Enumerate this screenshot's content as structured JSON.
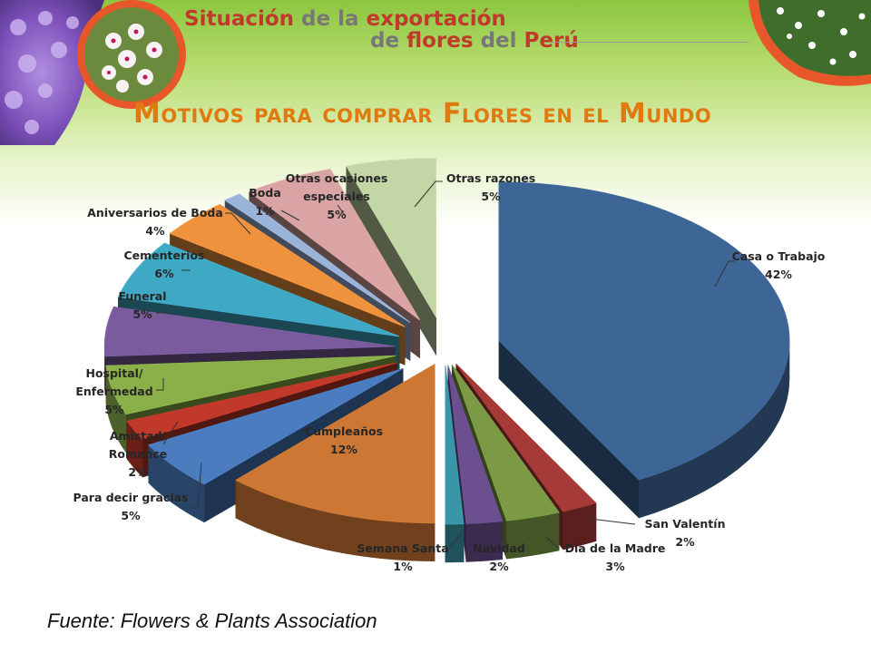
{
  "header": {
    "title_line1_a": "Situación",
    "title_line1_b": " de la ",
    "title_line1_c": "exportación",
    "title_line2_a": "de ",
    "title_line2_b": "flores",
    "title_line2_c": " del ",
    "title_line2_d": "Perú"
  },
  "colors": {
    "header_green": "#8cc63f",
    "photo_ring": "#e8572a",
    "title_orange": "#e07a10"
  },
  "footer": {
    "source": "Fuente: Flowers & Plants Association"
  },
  "chart_data": {
    "type": "pie",
    "title": "Motivos para comprar Flores en el Mundo",
    "unit": "%",
    "slices": [
      {
        "name": "Casa o Trabajo",
        "value": 42,
        "label": "42%",
        "color": "#3d6596"
      },
      {
        "name": "San Valentín",
        "value": 2,
        "label": "2%",
        "color": "#a63a36"
      },
      {
        "name": "Día de la Madre",
        "value": 3,
        "label": "3%",
        "color": "#7c9a45"
      },
      {
        "name": "Navidad",
        "value": 2,
        "label": "2%",
        "color": "#6b4f8f"
      },
      {
        "name": "Semana Santa",
        "value": 1,
        "label": "1%",
        "color": "#3a95a8"
      },
      {
        "name": "Cumpleaños",
        "value": 12,
        "label": "12%",
        "color": "#cc7733"
      },
      {
        "name": "Para decir gracias",
        "value": 5,
        "label": "5%",
        "color": "#4a7cbf"
      },
      {
        "name": "Amistad/ Romance",
        "value": 2,
        "label": "2%",
        "color": "#c0392b"
      },
      {
        "name": "Hospital/ Enfermedad",
        "value": 5,
        "label": "5%",
        "color": "#8bb04a"
      },
      {
        "name": "Funeral",
        "value": 5,
        "label": "5%",
        "color": "#7a5c9e"
      },
      {
        "name": "Cementerios",
        "value": 6,
        "label": "6%",
        "color": "#3fa8c4"
      },
      {
        "name": "Aniversarios de Boda",
        "value": 4,
        "label": "4%",
        "color": "#ef923d"
      },
      {
        "name": "Boda",
        "value": 1,
        "label": "1%",
        "color": "#9ab3d8"
      },
      {
        "name": "Otras ocasiones especiales",
        "value": 5,
        "label": "5%",
        "color": "#d9a4a3"
      },
      {
        "name": "Otras razones",
        "value": 5,
        "label": "5%",
        "color": "#c3d6a6"
      }
    ],
    "legend": "none"
  }
}
